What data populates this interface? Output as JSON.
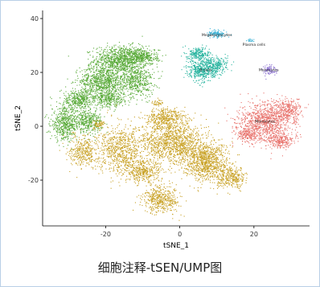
{
  "caption": "细胞注释-tSEN/UMP图",
  "chart_data": {
    "type": "scatter",
    "title": "",
    "xlabel": "tSNE_1",
    "ylabel": "tSNE_2",
    "xlim": [
      -37,
      35
    ],
    "ylim": [
      -37,
      43
    ],
    "xticks": [
      -20,
      0,
      20
    ],
    "xtick_labels": [
      "-20",
      "0",
      "20"
    ],
    "yticks": [
      40,
      20,
      0,
      -20
    ],
    "ytick_labels": [
      "40",
      "20",
      "0",
      "-20"
    ],
    "grid": false,
    "legend": "none",
    "clusters": [
      {
        "label": "",
        "color": "#5aab3a",
        "center": [
          -18,
          18
        ]
      },
      {
        "label": "",
        "color": "#c9a227",
        "center": [
          -8,
          -8
        ]
      },
      {
        "label": "B cells",
        "color": "#2ab5a0",
        "center": [
          7,
          21
        ]
      },
      {
        "label": "Megakaryocytes",
        "color": "#3fb3d6",
        "center": [
          10,
          34
        ]
      },
      {
        "label": "Plasma cells",
        "color": "#3fb3d6",
        "center": [
          20,
          30.5
        ]
      },
      {
        "label": "Monocytes",
        "color": "#8a6fd1",
        "center": [
          24,
          21
        ]
      },
      {
        "label": "Monocytes",
        "color": "#e8726c",
        "center": [
          23,
          2
        ]
      }
    ]
  }
}
